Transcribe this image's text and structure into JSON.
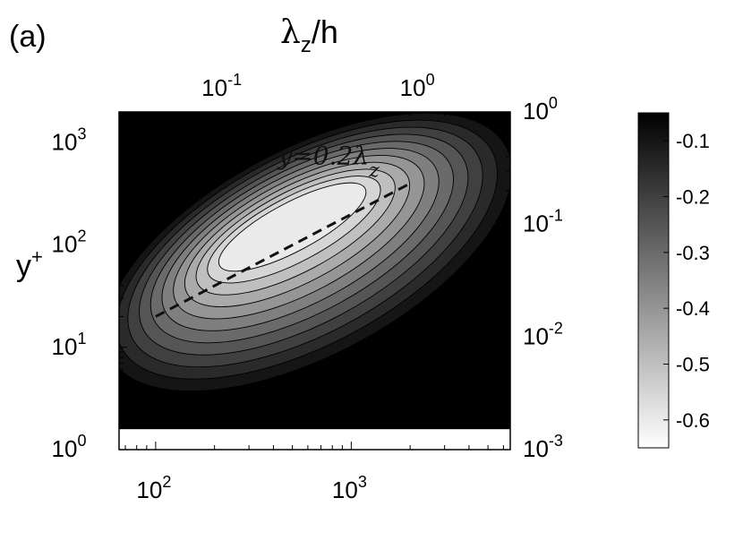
{
  "panel_label": "(a)",
  "chart_data": {
    "type": "heatmap",
    "x_bottom": {
      "label": "",
      "scale": "log",
      "range": [
        65,
        6500
      ],
      "ticks": [
        {
          "value": 100,
          "base": "10",
          "exp": "2"
        },
        {
          "value": 1000,
          "base": "10",
          "exp": "3"
        }
      ]
    },
    "x_top": {
      "label_main": "λ",
      "label_sub": "z",
      "label_rest": "/h",
      "scale": "log",
      "range": [
        0.0325,
        3.25
      ],
      "ticks": [
        {
          "value": 0.1,
          "base": "10",
          "exp": "-1"
        },
        {
          "value": 1,
          "base": "10",
          "exp": "0"
        }
      ]
    },
    "y_left": {
      "label_main": "y",
      "label_sup": "+",
      "scale": "log",
      "range": [
        1,
        2000
      ],
      "ticks": [
        {
          "value": 1,
          "base": "10",
          "exp": "0"
        },
        {
          "value": 10,
          "base": "10",
          "exp": "1"
        },
        {
          "value": 100,
          "base": "10",
          "exp": "2"
        },
        {
          "value": 1000,
          "base": "10",
          "exp": "3"
        }
      ]
    },
    "y_right": {
      "label": "",
      "scale": "log",
      "range": [
        0.001,
        1
      ],
      "ticks": [
        {
          "value": 0.001,
          "base": "10",
          "exp": "-3"
        },
        {
          "value": 0.01,
          "base": "10",
          "exp": "-2"
        },
        {
          "value": 0.1,
          "base": "10",
          "exp": "-1"
        },
        {
          "value": 1,
          "base": "10",
          "exp": "0"
        }
      ]
    },
    "colorbar": {
      "range": [
        -0.65,
        -0.05
      ],
      "ticks": [
        {
          "value": -0.1,
          "label": "-0.1"
        },
        {
          "value": -0.2,
          "label": "-0.2"
        },
        {
          "value": -0.3,
          "label": "-0.3"
        },
        {
          "value": -0.4,
          "label": "-0.4"
        },
        {
          "value": -0.5,
          "label": "-0.5"
        },
        {
          "value": -0.6,
          "label": "-0.6"
        }
      ],
      "colormap": "gray (white = -0.65, black = -0.05)"
    },
    "contour_levels": [
      -0.1,
      -0.15,
      -0.2,
      -0.25,
      -0.3,
      -0.35,
      -0.4,
      -0.45,
      -0.5,
      -0.55,
      -0.6
    ],
    "field_peak": {
      "x": 500,
      "y": 150,
      "value": -0.65
    },
    "blank_region_below_y": 1.6,
    "annotation": {
      "text_main": "y=0.2λ",
      "text_sub": "z",
      "position": {
        "x": 700,
        "y": 750
      }
    },
    "reference_line": {
      "style": "dashed",
      "label": "y=0.2λz",
      "x": [
        100,
        2000
      ],
      "y": [
        20,
        400
      ]
    }
  }
}
